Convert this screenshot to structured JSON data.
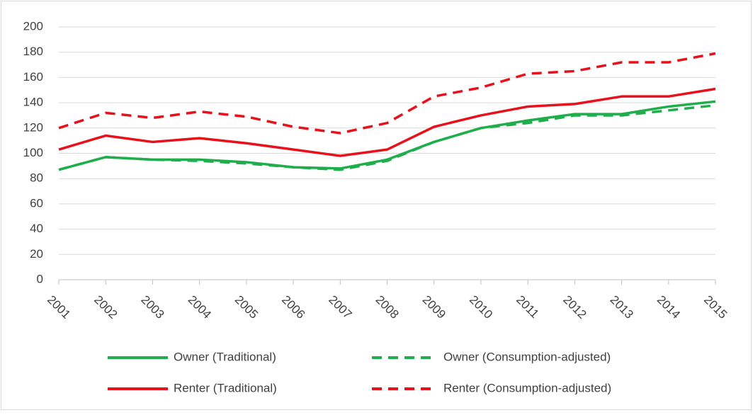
{
  "chart_data": {
    "type": "line",
    "categories": [
      "2001",
      "2002",
      "2003",
      "2004",
      "2005",
      "2006",
      "2007",
      "2008",
      "2009",
      "2010",
      "2011",
      "2012",
      "2013",
      "2014",
      "2015"
    ],
    "series": [
      {
        "name": "Owner (Traditional)",
        "color": "#1fae4b",
        "dashed": false,
        "values": [
          87,
          97,
          95,
          95,
          93,
          89,
          88,
          95,
          109,
          120,
          126,
          131,
          131,
          137,
          141
        ]
      },
      {
        "name": "Owner (Consumption-adjusted)",
        "color": "#1fae4b",
        "dashed": true,
        "values": [
          87,
          97,
          95,
          94,
          92,
          89,
          87,
          94,
          109,
          120,
          124,
          130,
          130,
          134,
          138
        ]
      },
      {
        "name": "Renter (Traditional)",
        "color": "#e8101a",
        "dashed": false,
        "values": [
          103,
          114,
          109,
          112,
          108,
          103,
          98,
          103,
          121,
          130,
          137,
          139,
          145,
          145,
          151
        ]
      },
      {
        "name": "Renter (Consumption-adjusted)",
        "color": "#e8101a",
        "dashed": true,
        "values": [
          120,
          132,
          128,
          133,
          129,
          121,
          116,
          124,
          145,
          152,
          163,
          165,
          172,
          172,
          179
        ]
      }
    ],
    "ylim": [
      0,
      200
    ],
    "yticks": [
      0,
      20,
      40,
      60,
      80,
      100,
      120,
      140,
      160,
      180,
      200
    ],
    "grid": true
  }
}
